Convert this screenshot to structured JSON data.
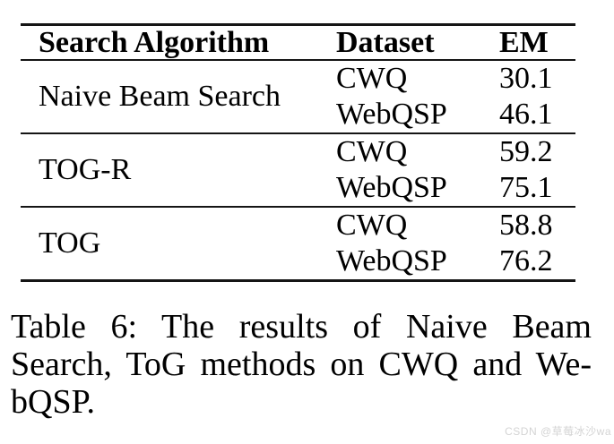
{
  "table": {
    "headers": {
      "algorithm": "Search Algorithm",
      "dataset": "Dataset",
      "em": "EM"
    },
    "groups": [
      {
        "algorithm": "Naive Beam Search",
        "rows": [
          {
            "dataset": "CWQ",
            "em": "30.1"
          },
          {
            "dataset": "WebQSP",
            "em": "46.1"
          }
        ]
      },
      {
        "algorithm": "TOG-R",
        "rows": [
          {
            "dataset": "CWQ",
            "em": "59.2"
          },
          {
            "dataset": "WebQSP",
            "em": "75.1"
          }
        ]
      },
      {
        "algorithm": "TOG",
        "rows": [
          {
            "dataset": "CWQ",
            "em": "58.8"
          },
          {
            "dataset": "WebQSP",
            "em": "76.2"
          }
        ]
      }
    ]
  },
  "chart_data": {
    "type": "table",
    "title": "Table 6",
    "columns": [
      "Search Algorithm",
      "Dataset",
      "EM"
    ],
    "rows": [
      [
        "Naive Beam Search",
        "CWQ",
        30.1
      ],
      [
        "Naive Beam Search",
        "WebQSP",
        46.1
      ],
      [
        "TOG-R",
        "CWQ",
        59.2
      ],
      [
        "TOG-R",
        "WebQSP",
        75.1
      ],
      [
        "TOG",
        "CWQ",
        58.8
      ],
      [
        "TOG",
        "WebQSP",
        76.2
      ]
    ]
  },
  "caption": {
    "lines": [
      "Table 6:  The results of Naive Beam",
      "Search, ToG methods on CWQ and We-",
      "bQSP."
    ]
  },
  "watermark": "CSDN @草莓冰沙wa",
  "colors": {
    "background": "#ffffff",
    "text": "#000000",
    "rule": "#151515",
    "watermark": "#d4d4d4"
  }
}
